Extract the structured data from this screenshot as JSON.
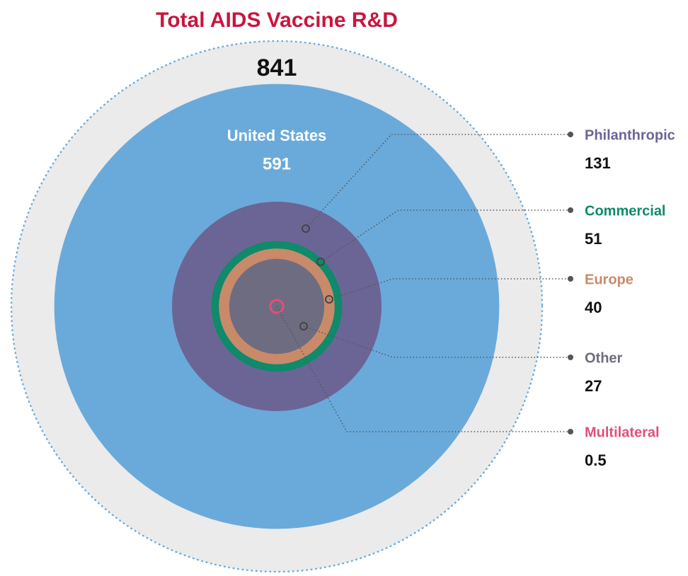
{
  "chart_data": {
    "type": "nested-circles",
    "title": "Total AIDS Vaccine R&D",
    "total": 841,
    "total_color": "#ebebeb",
    "series": [
      {
        "name": "United States",
        "value": 591,
        "color": "#6aaadb"
      },
      {
        "name": "Philanthropic",
        "value": 131,
        "color": "#6b6596"
      },
      {
        "name": "Commercial",
        "value": 51,
        "color": "#0f8a6a"
      },
      {
        "name": "Europe",
        "value": 40,
        "color": "#c98a6a"
      },
      {
        "name": "Other",
        "value": 27,
        "color": "#6e6c80"
      },
      {
        "name": "Multilateral",
        "value": 0.5,
        "color": "#e0507a"
      }
    ]
  }
}
